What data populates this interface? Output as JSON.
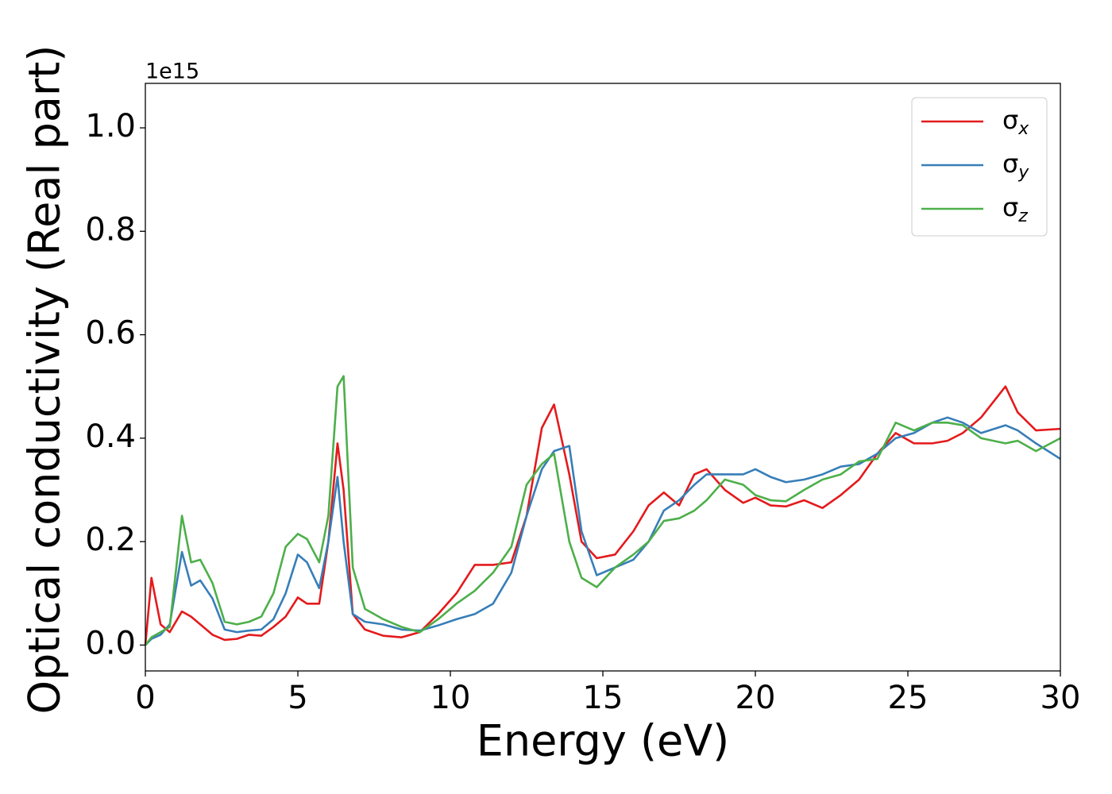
{
  "chart_data": {
    "type": "line",
    "xlabel": "Energy (eV)",
    "ylabel": "Optical conductivity (Real part)",
    "y_offset_label": "1e15",
    "x": [
      0,
      0.2,
      0.5,
      0.8,
      1.2,
      1.5,
      1.8,
      2.2,
      2.6,
      3.0,
      3.4,
      3.8,
      4.2,
      4.6,
      5.0,
      5.3,
      5.7,
      6.0,
      6.3,
      6.5,
      6.8,
      7.2,
      7.8,
      8.4,
      9.0,
      9.6,
      10.2,
      10.8,
      11.4,
      12.0,
      12.5,
      13.0,
      13.4,
      13.9,
      14.3,
      14.8,
      15.4,
      16.0,
      16.5,
      17.0,
      17.5,
      18.0,
      18.4,
      19.0,
      19.6,
      20.0,
      20.5,
      21.0,
      21.6,
      22.2,
      22.8,
      23.4,
      24.0,
      24.6,
      25.2,
      25.8,
      26.3,
      26.8,
      27.4,
      28.2,
      28.6,
      29.2,
      30.0
    ],
    "series": [
      {
        "name": "σx",
        "color": "#e41a1c",
        "values": [
          0.0,
          0.13,
          0.04,
          0.025,
          0.065,
          0.055,
          0.04,
          0.02,
          0.01,
          0.012,
          0.02,
          0.018,
          0.035,
          0.055,
          0.092,
          0.08,
          0.08,
          0.2,
          0.39,
          0.3,
          0.06,
          0.03,
          0.018,
          0.015,
          0.025,
          0.06,
          0.1,
          0.155,
          0.155,
          0.16,
          0.25,
          0.42,
          0.465,
          0.33,
          0.2,
          0.168,
          0.175,
          0.22,
          0.27,
          0.295,
          0.27,
          0.33,
          0.34,
          0.3,
          0.275,
          0.285,
          0.27,
          0.268,
          0.28,
          0.265,
          0.29,
          0.32,
          0.37,
          0.41,
          0.39,
          0.39,
          0.395,
          0.41,
          0.44,
          0.5,
          0.45,
          0.415,
          0.418
        ]
      },
      {
        "name": "σy",
        "color": "#377eb8",
        "values": [
          0.0,
          0.012,
          0.02,
          0.04,
          0.18,
          0.115,
          0.125,
          0.09,
          0.03,
          0.025,
          0.028,
          0.03,
          0.05,
          0.1,
          0.175,
          0.16,
          0.11,
          0.2,
          0.325,
          0.2,
          0.06,
          0.045,
          0.04,
          0.03,
          0.028,
          0.038,
          0.05,
          0.06,
          0.08,
          0.14,
          0.25,
          0.34,
          0.375,
          0.385,
          0.22,
          0.135,
          0.15,
          0.165,
          0.2,
          0.26,
          0.28,
          0.31,
          0.33,
          0.33,
          0.33,
          0.34,
          0.325,
          0.315,
          0.32,
          0.33,
          0.345,
          0.35,
          0.37,
          0.4,
          0.41,
          0.43,
          0.44,
          0.43,
          0.41,
          0.425,
          0.415,
          0.39,
          0.36
        ]
      },
      {
        "name": "σz",
        "color": "#4daf4a",
        "values": [
          0.0,
          0.015,
          0.025,
          0.035,
          0.25,
          0.16,
          0.165,
          0.12,
          0.045,
          0.04,
          0.045,
          0.055,
          0.1,
          0.19,
          0.215,
          0.205,
          0.16,
          0.25,
          0.5,
          0.52,
          0.15,
          0.07,
          0.05,
          0.035,
          0.025,
          0.05,
          0.08,
          0.105,
          0.14,
          0.19,
          0.31,
          0.35,
          0.37,
          0.2,
          0.13,
          0.112,
          0.15,
          0.175,
          0.2,
          0.24,
          0.245,
          0.26,
          0.28,
          0.32,
          0.31,
          0.29,
          0.28,
          0.278,
          0.3,
          0.32,
          0.33,
          0.355,
          0.36,
          0.43,
          0.415,
          0.43,
          0.43,
          0.425,
          0.4,
          0.39,
          0.395,
          0.375,
          0.4
        ]
      }
    ],
    "xlim": [
      0,
      30
    ],
    "xticks": [
      0,
      5,
      10,
      15,
      20,
      25,
      30
    ],
    "ylim": [
      -0.05,
      1.086
    ],
    "yticks": [
      {
        "value": 0,
        "label": "0.0"
      },
      0.2,
      0.4,
      0.6,
      0.8,
      {
        "value": 1,
        "label": "1.0"
      }
    ],
    "grid": false,
    "legend": "upper right"
  }
}
